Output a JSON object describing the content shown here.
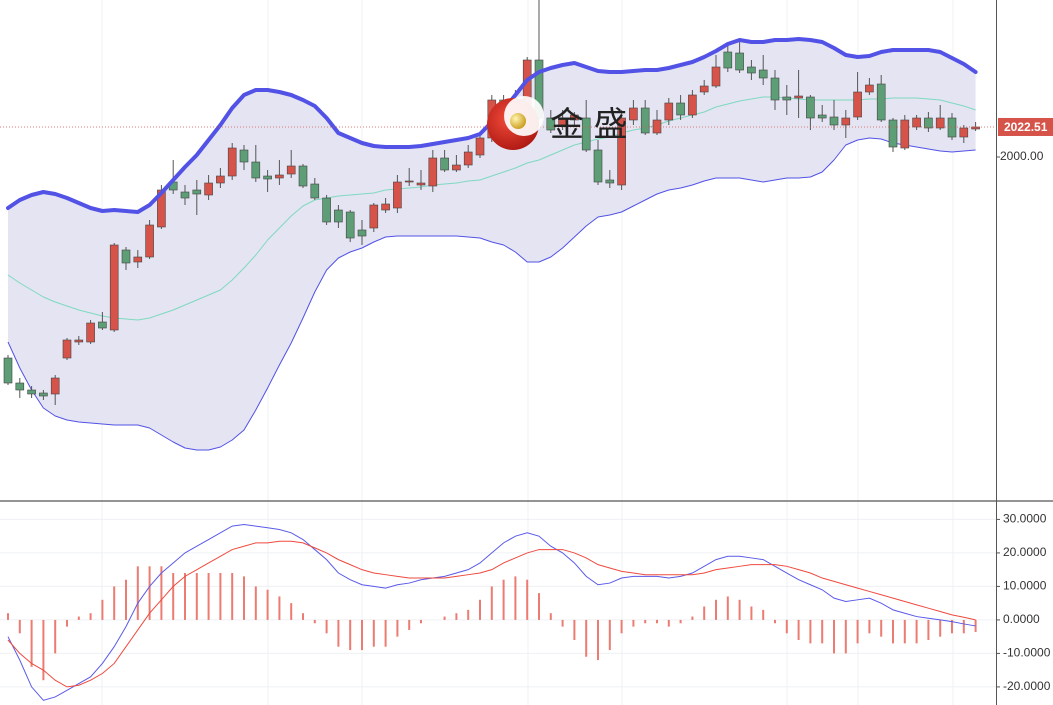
{
  "watermark": "金 盛",
  "chart_data": [
    {
      "type": "candlestick",
      "up_color": "#d6534a",
      "down_color": "#5d9e76",
      "wick_color": "#555",
      "ylim": [
        1742.75,
        2117.75
      ],
      "yticks": [
        {
          "value": 2000,
          "label": "2000.00"
        }
      ],
      "last_color": "#d6534a",
      "open": [
        1849.25,
        1830.5,
        1825.25,
        1823,
        1822.25,
        1849.25,
        1861.25,
        1861.25,
        1876.25,
        1870.25,
        1930.25,
        1921.25,
        1925,
        1947.5,
        1981.25,
        1973.75,
        1975.25,
        1971.5,
        1980.5,
        1985.75,
        2005.25,
        1996.25,
        1985.75,
        1984.25,
        1987.25,
        1993.25,
        1979.75,
        1969.25,
        1960.25,
        1958.75,
        1945.25,
        1946.75,
        1960.25,
        1961.75,
        1981.25,
        1979,
        1978.25,
        1999.25,
        1990.25,
        1994,
        2001.5,
        2014.25,
        2042.75,
        2039,
        2033.75,
        2072.75,
        2029.25,
        2024,
        2027.75,
        2029.25,
        2005.25,
        1982.75,
        1979,
        2027.75,
        2036.75,
        2018,
        2027.75,
        2040.5,
        2031.5,
        2048.75,
        2053.25,
        2078.75,
        2078,
        2067.5,
        2065.25,
        2059.25,
        2045,
        2044.25,
        2045,
        2031.5,
        2030,
        2024,
        2030,
        2048.75,
        2054.75,
        2027.75,
        2006.75,
        2022.5,
        2029.25,
        2021.75,
        2029.25,
        2015,
        2021
      ],
      "high": [
        1851.5,
        1834.25,
        1828.25,
        1825.25,
        1836.5,
        1864.25,
        1865.75,
        1877.75,
        1883.75,
        1935.5,
        1932.5,
        1930.25,
        1952.75,
        1979,
        1997.75,
        1979,
        1982.75,
        1986.5,
        1991.75,
        2010.5,
        2009,
        2009,
        1990.25,
        1997.75,
        2005.25,
        1994.75,
        1984.25,
        1971.5,
        1964,
        1960.25,
        1952.75,
        1965.5,
        1969.25,
        1986.5,
        1991.75,
        1990.25,
        2005.25,
        2005.25,
        2001.5,
        2009,
        2018,
        2046.5,
        2046.5,
        2050.25,
        2075,
        2117.75,
        2035.25,
        2035.25,
        2033.75,
        2042.75,
        2012.75,
        1990.25,
        2035.25,
        2042.75,
        2042.75,
        2035.25,
        2044.25,
        2046.5,
        2050.25,
        2057.75,
        2076.5,
        2084,
        2086.25,
        2072.75,
        2076.5,
        2065.25,
        2054,
        2065.25,
        2046.5,
        2039,
        2042.75,
        2035.25,
        2063.75,
        2059.25,
        2061.5,
        2029.25,
        2031.5,
        2031.5,
        2033.75,
        2039,
        2033,
        2024,
        2026.25
      ],
      "low": [
        1829,
        1819.25,
        1819.25,
        1817.75,
        1814,
        1847.75,
        1859,
        1859.75,
        1870.25,
        1868.75,
        1915.25,
        1916.75,
        1923.5,
        1946,
        1972.25,
        1964,
        1956.5,
        1967.75,
        1976.75,
        1982.75,
        1990.25,
        1981.25,
        1973.75,
        1979,
        1984.25,
        1976.75,
        1967.75,
        1949,
        1946.75,
        1936.25,
        1934,
        1943.75,
        1958,
        1958,
        1978.25,
        1975.25,
        1973.75,
        1988.75,
        1988.75,
        1991.75,
        1999.25,
        2011.25,
        2031.5,
        2027.75,
        2031.5,
        2027.75,
        2018,
        2020.25,
        2024,
        2003.75,
        1979,
        1976.75,
        1975.25,
        2024,
        2016.5,
        2016.5,
        2024,
        2027.75,
        2029.25,
        2046.5,
        2051.75,
        2063.75,
        2063,
        2057.75,
        2054,
        2035.25,
        2031.5,
        2029.25,
        2020.25,
        2026.25,
        2020.25,
        2014.25,
        2027.75,
        2046.5,
        2026.25,
        2003.75,
        2005.25,
        2020.25,
        2018.75,
        2020.25,
        2012.75,
        2010.5,
        2019.5
      ],
      "close": [
        1830.5,
        1825.25,
        1822.25,
        1820.75,
        1834.25,
        1862.75,
        1862.75,
        1875.5,
        1871.75,
        1934,
        1920.5,
        1925,
        1949,
        1975.25,
        1975.25,
        1969.25,
        1972.25,
        1980.5,
        1985.75,
        2006.75,
        1996.25,
        1984.25,
        1983.5,
        1986.5,
        1993.25,
        1978.25,
        1969.25,
        1951.25,
        1951.25,
        1939.25,
        1940.75,
        1964,
        1964.75,
        1981.25,
        1982,
        1980.5,
        1999.25,
        1990.25,
        1994,
        2003.75,
        2014.25,
        2042.75,
        2036.75,
        2042.75,
        2072.75,
        2029.25,
        2020.25,
        2029.25,
        2031.5,
        2005.25,
        1981.25,
        1980.5,
        2029.25,
        2036.75,
        2018,
        2027.75,
        2040.5,
        2031.5,
        2046.5,
        2053.25,
        2067.5,
        2066.75,
        2065.25,
        2063,
        2059.25,
        2042.75,
        2042.75,
        2045.75,
        2029.25,
        2029.25,
        2024,
        2029.25,
        2048.75,
        2054,
        2027.75,
        2007.5,
        2027.75,
        2029.25,
        2021.75,
        2029.25,
        2015,
        2021.75,
        2022.51
      ],
      "band_fill": "#e4e4f2",
      "bands": [
        {
          "color": "#5252e6",
          "width": 4,
          "values": [
            1961.75,
            1967.75,
            1971.5,
            1973.75,
            1972.25,
            1969.25,
            1965.5,
            1961.75,
            1959.5,
            1960.25,
            1959.5,
            1958.75,
            1964,
            1973,
            1982.75,
            1992.5,
            2001.5,
            2012.75,
            2024,
            2036.75,
            2046.5,
            2050.25,
            2050.25,
            2048.75,
            2046.5,
            2042.75,
            2038.25,
            2029.25,
            2018,
            2014.25,
            2010.5,
            2008.25,
            2007.5,
            2007.5,
            2007.5,
            2008.25,
            2009.75,
            2011.25,
            2012.75,
            2014.25,
            2017.25,
            2026.25,
            2035.25,
            2046.5,
            2057.75,
            2063.75,
            2066.75,
            2069,
            2070.5,
            2067.5,
            2064.5,
            2063.75,
            2063.75,
            2064.5,
            2065.25,
            2065.25,
            2066.75,
            2069,
            2071.25,
            2075,
            2079.5,
            2084.75,
            2087.75,
            2086.25,
            2086.25,
            2087.75,
            2087.75,
            2088.5,
            2087.75,
            2086.25,
            2081.75,
            2076.5,
            2075,
            2075.75,
            2078.75,
            2080.25,
            2080.25,
            2080.25,
            2080.25,
            2078.75,
            2074.25,
            2069.75,
            2063.75
          ]
        },
        {
          "color": "#7fd9bf",
          "width": 1,
          "values": [
            1911.5,
            1905.5,
            1900.25,
            1895,
            1891.25,
            1888.25,
            1885.25,
            1883,
            1880.75,
            1879.25,
            1878.5,
            1877.75,
            1879.25,
            1882.25,
            1885.25,
            1889,
            1892.75,
            1896.5,
            1900.25,
            1907.75,
            1916.75,
            1926.5,
            1937.75,
            1946.75,
            1955.75,
            1963.25,
            1967.75,
            1969.25,
            1970.75,
            1971.5,
            1972.25,
            1973,
            1975.25,
            1976,
            1976.75,
            1977.5,
            1979,
            1979.75,
            1980.5,
            1982,
            1982.75,
            1985.75,
            1988.75,
            1991.75,
            1995.5,
            1997.75,
            2001.5,
            2005.25,
            2009,
            2011.25,
            2013.5,
            2015,
            2018,
            2020.25,
            2021.75,
            2024,
            2027,
            2029.25,
            2031.5,
            2033.75,
            2037.5,
            2039.75,
            2042,
            2043.5,
            2045,
            2045,
            2044.25,
            2043.5,
            2042.75,
            2042.75,
            2042.75,
            2042.75,
            2042.75,
            2043.5,
            2043.5,
            2044.25,
            2044.25,
            2044.25,
            2043.5,
            2042.75,
            2040.5,
            2038.25,
            2035.25
          ]
        },
        {
          "color": "#5252e6",
          "width": 1,
          "values": [
            1861.25,
            1841.75,
            1825.25,
            1811.75,
            1805.75,
            1802.75,
            1801.25,
            1800.5,
            1799.75,
            1799,
            1799,
            1799,
            1796.75,
            1791.5,
            1786.25,
            1781.75,
            1780.25,
            1780.25,
            1782.5,
            1787.75,
            1795.25,
            1810.25,
            1826.75,
            1844,
            1860.5,
            1879.25,
            1898.75,
            1915.25,
            1924.25,
            1928.75,
            1931.75,
            1936.25,
            1940,
            1940.75,
            1940.75,
            1940.75,
            1940.75,
            1940.75,
            1940.75,
            1940,
            1939.25,
            1936.25,
            1934,
            1928.75,
            1921.25,
            1921.25,
            1925,
            1931.75,
            1940,
            1948.25,
            1955,
            1956.5,
            1958.75,
            1963.25,
            1967.75,
            1972.25,
            1975.25,
            1976.75,
            1979,
            1982,
            1984.25,
            1984.25,
            1984.25,
            1982.75,
            1981.25,
            1982.75,
            1984.25,
            1984.25,
            1985,
            1988.75,
            1997.75,
            2009,
            2012.75,
            2014.25,
            2013.5,
            2010.5,
            2009,
            2007.5,
            2006,
            2004.5,
            2003.75,
            2004.5,
            2005.25
          ]
        }
      ]
    },
    {
      "type": "macd",
      "ylim": [
        -25.4,
        35.2
      ],
      "yticks": [
        {
          "value": 30,
          "label": "30.0000"
        },
        {
          "value": 20,
          "label": "20.0000"
        },
        {
          "value": 10,
          "label": "10.0000"
        },
        {
          "value": 0,
          "label": "0.0000"
        },
        {
          "value": -10,
          "label": "-10.0000"
        },
        {
          "value": -20,
          "label": "-20.0000"
        }
      ],
      "grid": true,
      "histogram": {
        "color": "#ec7b72",
        "values": [
          2,
          -4,
          -14,
          -18,
          -10,
          -2,
          1,
          2,
          6,
          10,
          12,
          16,
          16,
          16,
          14,
          14,
          14,
          14,
          14,
          14,
          13,
          10,
          9,
          7,
          5,
          2,
          -1,
          -4,
          -8,
          -9,
          -9,
          -8,
          -8,
          -5,
          -3,
          -1,
          0,
          1,
          2,
          3,
          6,
          10,
          12,
          13,
          12,
          8,
          2,
          -2,
          -6,
          -11,
          -12,
          -9,
          -4,
          -2,
          -1,
          -1,
          -2,
          -1,
          1,
          4,
          6,
          7,
          6,
          4,
          3,
          -1,
          -4,
          -6,
          -7,
          -7,
          -10,
          -10,
          -7,
          -4,
          -5,
          -7,
          -7,
          -7,
          -6,
          -5,
          -4,
          -4,
          -3.6
        ]
      },
      "series": [
        {
          "color": "#5a5ae8",
          "values": [
            -5,
            -12,
            -20,
            -24,
            -23,
            -21,
            -19,
            -17,
            -13,
            -8,
            -2,
            5,
            10,
            14,
            17,
            20,
            22,
            24,
            26,
            28,
            28.5,
            28,
            27.5,
            27,
            26,
            24,
            21,
            18,
            14,
            12,
            10.5,
            10,
            9.5,
            10.5,
            11,
            12,
            12.5,
            13,
            14,
            15,
            17,
            20,
            23,
            25,
            26,
            25,
            22,
            20,
            17,
            13,
            10.5,
            11,
            12.5,
            13,
            13,
            13,
            12.5,
            13,
            14,
            16,
            18,
            19,
            19,
            18.5,
            18,
            16,
            14,
            12,
            10.5,
            9,
            6.5,
            5.5,
            6,
            6.5,
            5,
            3,
            2,
            1,
            0.5,
            0,
            -0.5,
            -1.2,
            -1.8
          ]
        },
        {
          "color": "#ee4a3e",
          "values": [
            -6,
            -10,
            -13,
            -15,
            -18,
            -20,
            -19.5,
            -18,
            -16,
            -13,
            -8,
            -3,
            2,
            6,
            10,
            13,
            15,
            17,
            19,
            21,
            22,
            23,
            23,
            23.5,
            23.5,
            23,
            21.5,
            20,
            18,
            16.5,
            15,
            14,
            13.5,
            13,
            12.5,
            12.5,
            12.5,
            12.5,
            13,
            13.5,
            14,
            15,
            17,
            18.5,
            20,
            21,
            21,
            21,
            20,
            18.5,
            16.5,
            15.5,
            14.5,
            14,
            13.5,
            13.5,
            13.5,
            13.5,
            13.5,
            14,
            15,
            15.5,
            16,
            16.5,
            16.5,
            16.5,
            16,
            15,
            14,
            12.5,
            11.5,
            10.5,
            9.5,
            8.5,
            7.5,
            6.5,
            5.5,
            4.5,
            3.5,
            2.5,
            1.5,
            0.8,
            0
          ]
        }
      ]
    }
  ]
}
